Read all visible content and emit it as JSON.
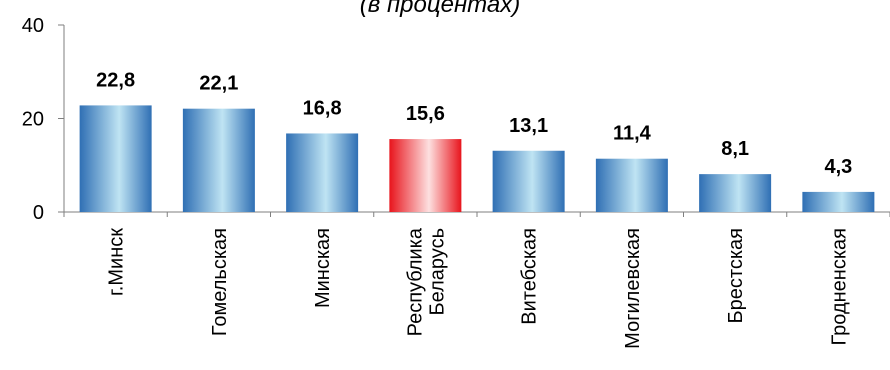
{
  "chart_data": {
    "type": "bar",
    "title": "(в процентах)",
    "categories": [
      "г.Минск",
      "Гомельская",
      "Минская",
      "Республика\nБеларусь",
      "Витебская",
      "Могилевская",
      "Брестская",
      "Гродненская"
    ],
    "values": [
      22.8,
      22.1,
      16.8,
      15.6,
      13.1,
      11.4,
      8.1,
      4.3
    ],
    "value_labels": [
      "22,8",
      "22,1",
      "16,8",
      "15,6",
      "13,1",
      "11,4",
      "8,1",
      "4,3"
    ],
    "highlight_index": 3,
    "ylim": [
      0,
      40
    ],
    "yticks": [
      0,
      20,
      40
    ],
    "xlabel": "",
    "ylabel": "",
    "grid": false,
    "colors": {
      "bar_dark": "#2f6fb4",
      "bar_light": "#bfe4f3",
      "highlight_dark": "#e8141c",
      "highlight_light": "#fde0e0",
      "axis": "#7f7f7f"
    }
  }
}
